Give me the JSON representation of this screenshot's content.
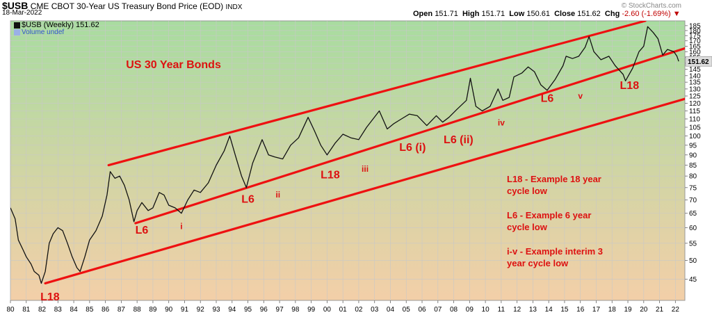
{
  "header": {
    "ticker": "$USB",
    "description": "CME CBOT 30-Year US Treasury Bond Price (EOD)",
    "exchange": "INDX",
    "date": "18-Mar-2022",
    "credit": "© StockCharts.com",
    "open_label": "Open",
    "open": "151.71",
    "high_label": "High",
    "high": "151.71",
    "low_label": "Low",
    "low": "150.61",
    "close_label": "Close",
    "close": "151.62",
    "chg_label": "Chg",
    "chg": "-2.60 (-1.69%)"
  },
  "legend": {
    "series_label": "$USB (Weekly) 151.62",
    "volume_label": "Volume undef"
  },
  "chart_data": {
    "type": "line",
    "title": "US 30 Year Bonds",
    "y_scale": "log",
    "ylim": [
      40,
      190
    ],
    "xlim": [
      1980,
      2022.6
    ],
    "y_ticks": [
      45,
      50,
      55,
      60,
      65,
      70,
      75,
      80,
      85,
      90,
      95,
      100,
      105,
      110,
      115,
      120,
      125,
      130,
      135,
      140,
      145,
      150,
      155,
      160,
      165,
      170,
      175,
      180,
      185
    ],
    "x_ticks": [
      {
        "label": "80",
        "x": 1980
      },
      {
        "label": "81",
        "x": 1981
      },
      {
        "label": "82",
        "x": 1982
      },
      {
        "label": "83",
        "x": 1983
      },
      {
        "label": "84",
        "x": 1984
      },
      {
        "label": "85",
        "x": 1985
      },
      {
        "label": "86",
        "x": 1986
      },
      {
        "label": "87",
        "x": 1987
      },
      {
        "label": "88",
        "x": 1988
      },
      {
        "label": "89",
        "x": 1989
      },
      {
        "label": "90",
        "x": 1990
      },
      {
        "label": "91",
        "x": 1991
      },
      {
        "label": "92",
        "x": 1992
      },
      {
        "label": "93",
        "x": 1993
      },
      {
        "label": "94",
        "x": 1994
      },
      {
        "label": "95",
        "x": 1995
      },
      {
        "label": "96",
        "x": 1996
      },
      {
        "label": "97",
        "x": 1997
      },
      {
        "label": "98",
        "x": 1998
      },
      {
        "label": "99",
        "x": 1999
      },
      {
        "label": "00",
        "x": 2000
      },
      {
        "label": "01",
        "x": 2001
      },
      {
        "label": "02",
        "x": 2002
      },
      {
        "label": "03",
        "x": 2003
      },
      {
        "label": "04",
        "x": 2004
      },
      {
        "label": "05",
        "x": 2005
      },
      {
        "label": "06",
        "x": 2006
      },
      {
        "label": "07",
        "x": 2007
      },
      {
        "label": "08",
        "x": 2008
      },
      {
        "label": "09",
        "x": 2009
      },
      {
        "label": "10",
        "x": 2010
      },
      {
        "label": "11",
        "x": 2011
      },
      {
        "label": "12",
        "x": 2012
      },
      {
        "label": "13",
        "x": 2013
      },
      {
        "label": "14",
        "x": 2014
      },
      {
        "label": "15",
        "x": 2015
      },
      {
        "label": "16",
        "x": 2016
      },
      {
        "label": "17",
        "x": 2017
      },
      {
        "label": "18",
        "x": 2018
      },
      {
        "label": "19",
        "x": 2019
      },
      {
        "label": "20",
        "x": 2020
      },
      {
        "label": "21",
        "x": 2021
      },
      {
        "label": "22",
        "x": 2022
      }
    ],
    "last_value_label": "151.62",
    "series": [
      {
        "points": [
          [
            1980.0,
            67
          ],
          [
            1980.3,
            63
          ],
          [
            1980.5,
            56
          ],
          [
            1980.8,
            53
          ],
          [
            1981.0,
            51
          ],
          [
            1981.3,
            49
          ],
          [
            1981.5,
            47
          ],
          [
            1981.8,
            46
          ],
          [
            1981.95,
            44
          ],
          [
            1982.2,
            47
          ],
          [
            1982.45,
            55
          ],
          [
            1982.7,
            58
          ],
          [
            1983.0,
            60
          ],
          [
            1983.3,
            59
          ],
          [
            1983.6,
            55
          ],
          [
            1983.9,
            51
          ],
          [
            1984.2,
            48
          ],
          [
            1984.4,
            47
          ],
          [
            1984.7,
            51
          ],
          [
            1985.0,
            56
          ],
          [
            1985.4,
            59
          ],
          [
            1985.8,
            64
          ],
          [
            1986.1,
            72
          ],
          [
            1986.3,
            82
          ],
          [
            1986.6,
            79
          ],
          [
            1986.9,
            80
          ],
          [
            1987.2,
            76
          ],
          [
            1987.5,
            70
          ],
          [
            1987.8,
            62
          ],
          [
            1988.0,
            66
          ],
          [
            1988.3,
            69
          ],
          [
            1988.7,
            66
          ],
          [
            1989.0,
            67
          ],
          [
            1989.4,
            73
          ],
          [
            1989.7,
            72
          ],
          [
            1990.0,
            68
          ],
          [
            1990.4,
            67
          ],
          [
            1990.8,
            65
          ],
          [
            1991.2,
            70
          ],
          [
            1991.6,
            74
          ],
          [
            1992.0,
            73
          ],
          [
            1992.5,
            77
          ],
          [
            1993.0,
            85
          ],
          [
            1993.5,
            92
          ],
          [
            1993.85,
            100
          ],
          [
            1994.2,
            90
          ],
          [
            1994.6,
            80
          ],
          [
            1994.9,
            75
          ],
          [
            1995.3,
            86
          ],
          [
            1995.9,
            98
          ],
          [
            1996.3,
            90
          ],
          [
            1996.7,
            89
          ],
          [
            1997.2,
            88
          ],
          [
            1997.7,
            95
          ],
          [
            1998.2,
            99
          ],
          [
            1998.8,
            111
          ],
          [
            1999.2,
            103
          ],
          [
            1999.6,
            95
          ],
          [
            2000.0,
            90
          ],
          [
            2000.5,
            96
          ],
          [
            2001.0,
            101
          ],
          [
            2001.5,
            99
          ],
          [
            2002.0,
            98
          ],
          [
            2002.5,
            105
          ],
          [
            2003.3,
            115
          ],
          [
            2003.8,
            104
          ],
          [
            2004.2,
            107
          ],
          [
            2004.7,
            110
          ],
          [
            2005.2,
            113
          ],
          [
            2005.7,
            112
          ],
          [
            2006.3,
            106
          ],
          [
            2006.9,
            112
          ],
          [
            2007.3,
            108
          ],
          [
            2007.7,
            111
          ],
          [
            2008.2,
            116
          ],
          [
            2008.8,
            122
          ],
          [
            2009.05,
            138
          ],
          [
            2009.4,
            118
          ],
          [
            2009.8,
            115
          ],
          [
            2010.3,
            118
          ],
          [
            2010.8,
            130
          ],
          [
            2011.1,
            122
          ],
          [
            2011.5,
            124
          ],
          [
            2011.8,
            139
          ],
          [
            2012.3,
            142
          ],
          [
            2012.7,
            147
          ],
          [
            2013.1,
            143
          ],
          [
            2013.5,
            133
          ],
          [
            2013.9,
            129
          ],
          [
            2014.4,
            137
          ],
          [
            2014.9,
            148
          ],
          [
            2015.1,
            156
          ],
          [
            2015.5,
            154
          ],
          [
            2015.9,
            156
          ],
          [
            2016.3,
            164
          ],
          [
            2016.55,
            174
          ],
          [
            2016.85,
            160
          ],
          [
            2017.3,
            153
          ],
          [
            2017.8,
            156
          ],
          [
            2018.2,
            148
          ],
          [
            2018.7,
            141
          ],
          [
            2018.85,
            136
          ],
          [
            2019.3,
            146
          ],
          [
            2019.7,
            160
          ],
          [
            2020.0,
            165
          ],
          [
            2020.25,
            184
          ],
          [
            2020.6,
            178
          ],
          [
            2020.9,
            172
          ],
          [
            2021.2,
            157
          ],
          [
            2021.5,
            162
          ],
          [
            2021.9,
            160
          ],
          [
            2022.1,
            156
          ],
          [
            2022.21,
            151.62
          ]
        ]
      }
    ],
    "channel_lines": [
      {
        "name": "upper",
        "points": [
          [
            1986.2,
            85
          ],
          [
            2020.1,
            190
          ]
        ]
      },
      {
        "name": "middle",
        "points": [
          [
            1987.9,
            61.5
          ],
          [
            2022.6,
            163
          ]
        ]
      },
      {
        "name": "lower",
        "points": [
          [
            1982.2,
            44
          ],
          [
            2022.6,
            123
          ]
        ]
      }
    ],
    "annotations": [
      {
        "text": "US 30 Year Bonds",
        "x": 1990.3,
        "y": 146
      },
      {
        "text": "L18",
        "x": 1982.5,
        "y": 40
      },
      {
        "text": "L6",
        "x": 1988.3,
        "y": 58
      },
      {
        "text": "i",
        "x": 1990.8,
        "y": 59.5
      },
      {
        "text": "L6",
        "x": 1995.0,
        "y": 69
      },
      {
        "text": "ii",
        "x": 1996.9,
        "y": 71
      },
      {
        "text": "L18",
        "x": 2000.2,
        "y": 79
      },
      {
        "text": "iii",
        "x": 2002.4,
        "y": 82
      },
      {
        "text": "L6 (i)",
        "x": 2005.4,
        "y": 92
      },
      {
        "text": "L6 (ii)",
        "x": 2008.3,
        "y": 96
      },
      {
        "text": "iv",
        "x": 2011.0,
        "y": 106
      },
      {
        "text": "L6",
        "x": 2013.9,
        "y": 121
      },
      {
        "text": "v",
        "x": 2016.0,
        "y": 123
      },
      {
        "text": "L18",
        "x": 2019.1,
        "y": 130
      }
    ],
    "notes": [
      [
        "L18 - Example 18 year",
        "cycle low"
      ],
      [
        "L6 - Example 6 year",
        "cycle low"
      ],
      [
        "i-v - Example interim 3",
        "year cycle low"
      ]
    ],
    "colors": {
      "price": "#111111",
      "channel": "#ee1111",
      "annotation": "#dd1111",
      "grid": "#c8c8c8",
      "bg_top": "#a8dca0",
      "bg_bottom": "#f3cfa8",
      "last_value_bg": "#dddddd"
    }
  }
}
